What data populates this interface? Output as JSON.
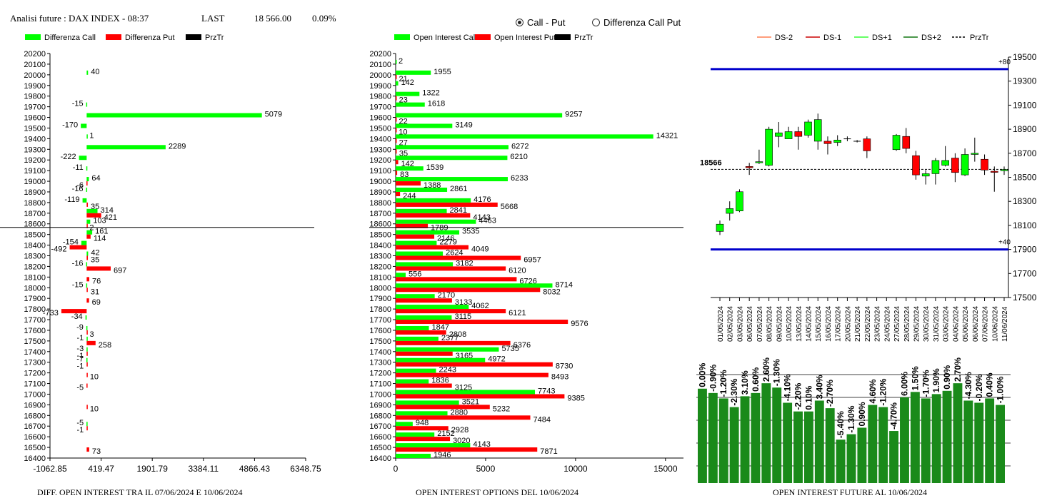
{
  "header": {
    "title": "Analisi future : DAX INDEX - 08:37",
    "last_label": "LAST",
    "last_value": "18 566.00",
    "last_change": "0.09%"
  },
  "options_mode": {
    "options": [
      "Call - Put",
      "Differenza Call Put"
    ],
    "selected": 0
  },
  "colors": {
    "call": "#00ff00",
    "put": "#ff0000",
    "prztr": "#000000",
    "future_bar": "#1a8a1a",
    "level_line": "#0000cc"
  },
  "footers": {
    "left": "DIFF. OPEN INTEREST TRA IL 07/06/2024 E 10/06/2024",
    "middle": "OPEN INTEREST OPTIONS DEL 10/06/2024",
    "right": "OPEN INTEREST FUTURE AL 10/06/2024"
  },
  "chart_data": [
    {
      "type": "bar",
      "orientation": "horizontal",
      "legend": [
        "Differenza Call",
        "Differenza Put",
        "PrzTr"
      ],
      "strikes": [
        "20200",
        "20100",
        "20000",
        "19900",
        "19800",
        "19700",
        "19600",
        "19500",
        "19400",
        "19300",
        "19200",
        "19100",
        "19000",
        "18900",
        "18800",
        "18700",
        "18600",
        "18500",
        "18400",
        "18300",
        "18200",
        "18100",
        "18000",
        "17900",
        "17800",
        "17700",
        "17600",
        "17500",
        "17400",
        "17300",
        "17200",
        "17100",
        "17000",
        "16900",
        "16800",
        "16700",
        "16600",
        "16500",
        "16400"
      ],
      "calls": [
        null,
        null,
        40,
        null,
        null,
        -15,
        5079,
        -170,
        1,
        2289,
        -222,
        -11,
        64,
        -16,
        -119,
        314,
        103,
        161,
        -154,
        42,
        -16,
        null,
        -15,
        null,
        null,
        -34,
        -9,
        -1,
        -3,
        -7,
        null,
        null,
        null,
        null,
        null,
        -5,
        null,
        null,
        null
      ],
      "puts": [
        null,
        null,
        null,
        null,
        null,
        null,
        null,
        null,
        null,
        null,
        null,
        null,
        -6,
        null,
        35,
        421,
        2,
        114,
        -492,
        35,
        697,
        76,
        31,
        69,
        -733,
        null,
        3,
        258,
        -1,
        -1,
        10,
        -5,
        null,
        10,
        null,
        -1,
        null,
        73,
        null
      ],
      "x_ticks": [
        "-1062.85",
        "419.47",
        "1901.79",
        "3384.11",
        "4866.43",
        "6348.75"
      ],
      "xlim": [
        -1062.85,
        6348.75
      ],
      "current_price": 18566
    },
    {
      "type": "bar",
      "orientation": "horizontal",
      "legend": [
        "Open Interest Call",
        "Open Interest Put",
        "PrzTr"
      ],
      "strikes": [
        "20200",
        "20100",
        "20000",
        "19900",
        "19800",
        "19700",
        "19600",
        "19500",
        "19400",
        "19300",
        "19200",
        "19100",
        "19000",
        "18900",
        "18800",
        "18700",
        "18600",
        "18500",
        "18400",
        "18300",
        "18200",
        "18100",
        "18000",
        "17900",
        "17800",
        "17700",
        "17600",
        "17500",
        "17400",
        "17300",
        "17200",
        "17100",
        "17000",
        "16900",
        "16800",
        "16700",
        "16600",
        "16500",
        "16400"
      ],
      "calls": [
        null,
        2,
        1955,
        142,
        1322,
        1618,
        9257,
        3149,
        14321,
        6272,
        6210,
        1539,
        6233,
        2861,
        4176,
        2841,
        4463,
        3535,
        2279,
        2624,
        3182,
        556,
        8714,
        2170,
        4062,
        3115,
        1847,
        2377,
        5735,
        4972,
        2243,
        1836,
        7743,
        3521,
        2880,
        948,
        2152,
        4143,
        1946
      ],
      "puts": [
        null,
        null,
        21,
        null,
        23,
        null,
        22,
        10,
        27,
        35,
        142,
        83,
        1388,
        244,
        5668,
        4143,
        1789,
        2146,
        4049,
        6957,
        6120,
        6726,
        8032,
        3133,
        6121,
        9576,
        2808,
        6376,
        3165,
        8730,
        8493,
        3125,
        9385,
        5232,
        7484,
        2928,
        3020,
        7871,
        null
      ],
      "x_ticks": [
        "0",
        "5000",
        "10000",
        "15000"
      ],
      "xlim": [
        0,
        16000
      ],
      "current_price": 18566
    },
    {
      "type": "candlestick",
      "legend": [
        "DS-2",
        "DS-1",
        "DS+1",
        "DS+2",
        "PrzTr"
      ],
      "dates": [
        "01/05/2024",
        "02/05/2024",
        "03/05/2024",
        "06/05/2024",
        "07/05/2024",
        "08/05/2024",
        "09/05/2024",
        "10/05/2024",
        "13/05/2024",
        "14/05/2024",
        "15/05/2024",
        "16/05/2024",
        "17/05/2024",
        "20/05/2024",
        "21/05/2024",
        "22/05/2024",
        "23/05/2024",
        "24/05/2024",
        "27/05/2024",
        "28/05/2024",
        "29/05/2024",
        "30/05/2024",
        "31/05/2024",
        "03/06/2024",
        "04/06/2024",
        "05/06/2024",
        "06/06/2024",
        "07/06/2024",
        "10/06/2024",
        "11/06/2024"
      ],
      "open": [
        18050,
        18200,
        18220,
        18590,
        18630,
        18600,
        18840,
        18820,
        18880,
        18850,
        18800,
        18800,
        18790,
        null,
        null,
        18820,
        null,
        null,
        18730,
        18840,
        18680,
        18510,
        18530,
        18600,
        18660,
        18520,
        18690,
        18650,
        18550,
        18555
      ],
      "close": [
        18110,
        18240,
        18380,
        18580,
        18630,
        18900,
        18870,
        18880,
        18840,
        18960,
        18980,
        18780,
        18810,
        null,
        null,
        18720,
        null,
        null,
        18850,
        18740,
        18520,
        18530,
        18640,
        18640,
        18540,
        18690,
        18700,
        18560,
        18545,
        18565
      ],
      "high": [
        18140,
        18300,
        18400,
        18620,
        18730,
        18920,
        18960,
        18920,
        18920,
        18980,
        19030,
        18840,
        18850,
        18840,
        18810,
        18840,
        null,
        null,
        18860,
        18910,
        18720,
        18560,
        18660,
        18760,
        18700,
        18740,
        18830,
        18690,
        18590,
        18590
      ],
      "low": [
        18020,
        18140,
        18210,
        18520,
        18610,
        18590,
        18750,
        18820,
        18730,
        18830,
        18730,
        18690,
        18760,
        18800,
        18790,
        18660,
        null,
        null,
        18720,
        18700,
        18480,
        18440,
        18440,
        18590,
        18460,
        18510,
        18630,
        18520,
        18380,
        18520
      ],
      "y_ticks": [
        "19500",
        "19300",
        "19100",
        "18900",
        "18700",
        "18500",
        "18300",
        "18100",
        "17900",
        "17700",
        "17500"
      ],
      "ylim": [
        17500,
        19500
      ],
      "current_price": 18566,
      "current_price_label": "18566",
      "upper_level": 19400,
      "upper_label": "+80",
      "lower_level": 17900,
      "lower_label": "+40"
    },
    {
      "type": "bar",
      "labels": [
        "0.00%",
        "-0.90%",
        "-1.20%",
        "-2.30%",
        "3.10%",
        "0.60%",
        "2.60%",
        "-1.30%",
        "-4.10%",
        "-2.20%",
        "0.10%",
        "3.40%",
        "-2.70%",
        "-5.40%",
        "-1.30%",
        "0.90%",
        "4.60%",
        "-1.20%",
        "-4.70%",
        "6.00%",
        "1.50%",
        "-1.70%",
        "1.90%",
        "0.90%",
        "2.70%",
        "-4.30%",
        "-0.20%",
        "0.40%",
        "-1.00%"
      ],
      "values": [
        87,
        83,
        78,
        70,
        80,
        83,
        92,
        88,
        74,
        66,
        66,
        76,
        69,
        40,
        45,
        51,
        72,
        70,
        48,
        79,
        84,
        78,
        82,
        85,
        92,
        76,
        74,
        78,
        72
      ]
    }
  ]
}
